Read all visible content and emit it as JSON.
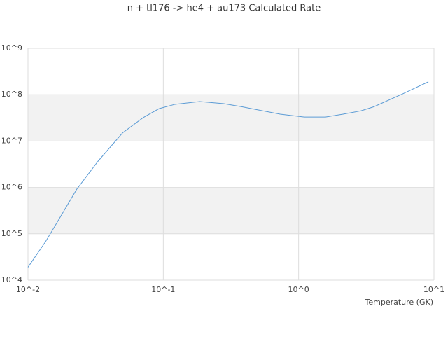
{
  "chart_data": {
    "type": "line",
    "title": "n + tl176 -> he4 + au173 Calculated Rate",
    "x_label": "Temperature (GK)",
    "log_x": true,
    "log_y": true,
    "grid": true,
    "band_color": "#f2f2f2",
    "grid_color": "#dddddd",
    "xlim": [
      0.01,
      10
    ],
    "ylim": [
      10000,
      1000000000
    ],
    "xticks": [
      {
        "value": 0.01,
        "label": "10^-2"
      },
      {
        "value": 0.1,
        "label": "10^-1"
      },
      {
        "value": 1,
        "label": "10^0"
      },
      {
        "value": 10,
        "label": "10^1"
      }
    ],
    "yticks": [
      {
        "value": 10000,
        "label": "10^4"
      },
      {
        "value": 100000,
        "label": "10^5"
      },
      {
        "value": 1000000,
        "label": "10^6"
      },
      {
        "value": 10000000,
        "label": "10^7"
      },
      {
        "value": 100000000,
        "label": "10^8"
      },
      {
        "value": 1000000000,
        "label": "10^9"
      }
    ],
    "series": [
      {
        "color": "#5b9bd5",
        "x": [
          0.01,
          0.0135,
          0.0161,
          0.0229,
          0.033,
          0.05,
          0.071,
          0.093,
          0.122,
          0.186,
          0.28,
          0.38,
          0.73,
          1.1,
          1.58,
          2.13,
          2.9,
          3.6,
          5.9,
          9.1
        ],
        "values": [
          19000,
          68000,
          160000,
          910000,
          3700000,
          15000000,
          32000000,
          50000000,
          62000000,
          71000000,
          64000000,
          55000000,
          38000000,
          33000000,
          33000000,
          38000000,
          45000000,
          55000000,
          105000000,
          190000000
        ]
      }
    ]
  }
}
